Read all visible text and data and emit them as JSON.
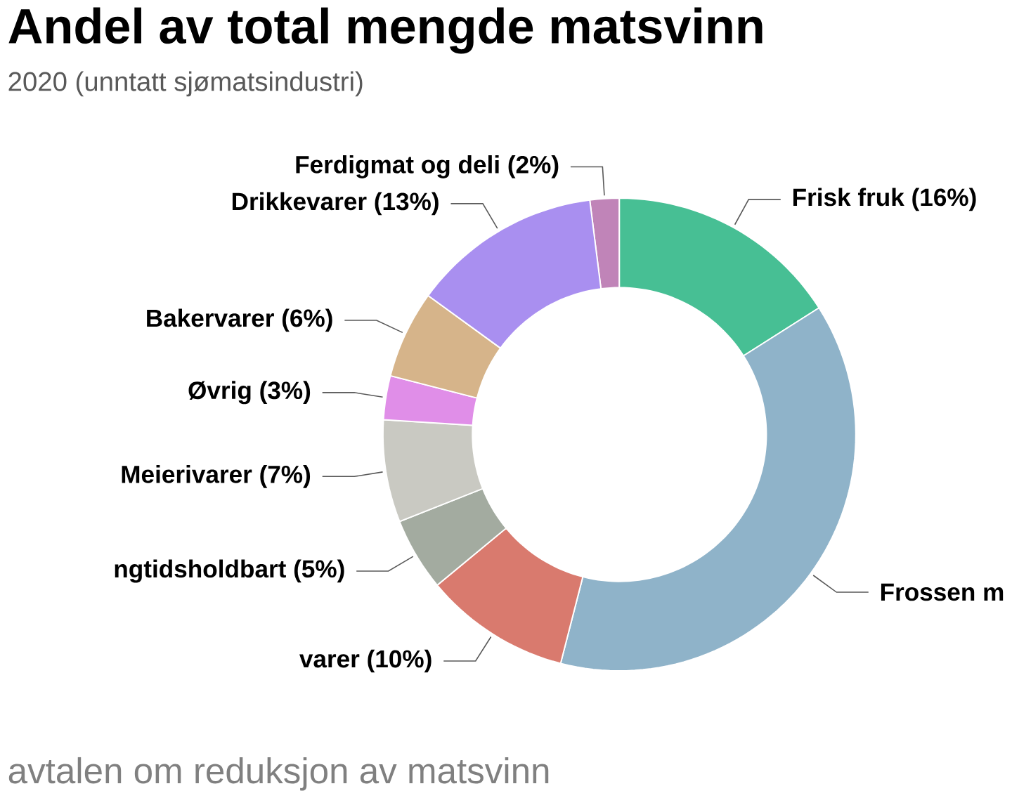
{
  "chart_data": {
    "type": "donut",
    "title": "Andel av total mengde matsvinn",
    "subtitle": "2020 (unntatt sjømatsindustri)",
    "categories": [
      "Ferdigmat og deli (2%)",
      "Frisk fruk (16%)",
      "Frossen m",
      "varer (10%)",
      "ngtidsholdbart (5%)",
      "Meierivarer (7%)",
      "Øvrig (3%)",
      "Bakervarer (6%)",
      "Drikkevarer (13%)"
    ],
    "values": [
      2,
      16,
      38,
      10,
      5,
      7,
      3,
      6,
      13
    ],
    "colors": [
      "#c084b8",
      "#47bf94",
      "#8fb3c9",
      "#d97a6e",
      "#a3aba0",
      "#c9c9c2",
      "#e08ee8",
      "#d6b48a",
      "#a98ff0"
    ],
    "annotations": [
      "avtalen om reduksjon av matsvinn"
    ]
  }
}
